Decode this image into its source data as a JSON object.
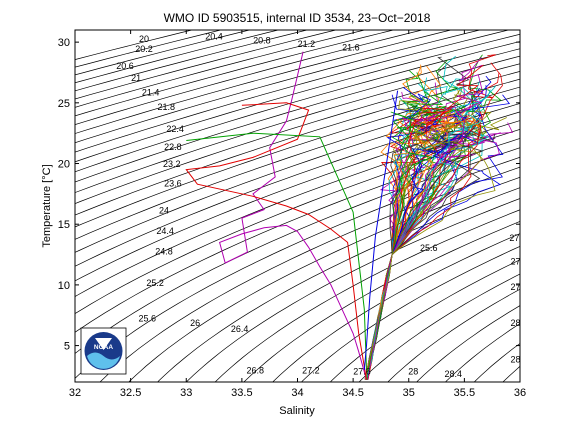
{
  "chart_data": {
    "type": "line",
    "title": "WMO ID 5903515, internal ID 3534, 23−Oct−2018",
    "xlabel": "Salinity",
    "ylabel": "Temperature [°C]",
    "xlim": [
      32,
      36
    ],
    "ylim": [
      2,
      31
    ],
    "xticks": [
      "32",
      "32.5",
      "33",
      "33.5",
      "34",
      "34.5",
      "35",
      "35.5",
      "36"
    ],
    "yticks": [
      "5",
      "10",
      "15",
      "20",
      "25",
      "30"
    ],
    "grid": false,
    "background_curves": "density (sigma-theta) isolines, black",
    "density_labels": [
      {
        "text": "20",
        "x": 32.62,
        "y": 30.0
      },
      {
        "text": "20.4",
        "x": 33.25,
        "y": 30.2
      },
      {
        "text": "20.8",
        "x": 33.68,
        "y": 29.9
      },
      {
        "text": "21.2",
        "x": 34.08,
        "y": 29.6
      },
      {
        "text": "21.6",
        "x": 34.48,
        "y": 29.3
      },
      {
        "text": "20.2",
        "x": 32.62,
        "y": 29.2
      },
      {
        "text": "20.6",
        "x": 32.45,
        "y": 27.8
      },
      {
        "text": "21",
        "x": 32.55,
        "y": 26.8
      },
      {
        "text": "21.4",
        "x": 32.68,
        "y": 25.6
      },
      {
        "text": "21.8",
        "x": 32.82,
        "y": 24.4
      },
      {
        "text": "22.4",
        "x": 32.9,
        "y": 22.6
      },
      {
        "text": "22.8",
        "x": 32.88,
        "y": 21.1
      },
      {
        "text": "23.2",
        "x": 32.87,
        "y": 19.7
      },
      {
        "text": "23.6",
        "x": 32.88,
        "y": 18.1
      },
      {
        "text": "24",
        "x": 32.8,
        "y": 15.9
      },
      {
        "text": "24.4",
        "x": 32.81,
        "y": 14.2
      },
      {
        "text": "24.8",
        "x": 32.8,
        "y": 12.5
      },
      {
        "text": "25.2",
        "x": 32.72,
        "y": 9.9
      },
      {
        "text": "25.6",
        "x": 32.65,
        "y": 7.0
      },
      {
        "text": "26",
        "x": 33.08,
        "y": 6.6
      },
      {
        "text": "26.4",
        "x": 33.48,
        "y": 6.1
      },
      {
        "text": "26.8",
        "x": 33.62,
        "y": 2.7
      },
      {
        "text": "27.2",
        "x": 34.12,
        "y": 2.7
      },
      {
        "text": "27.6",
        "x": 34.58,
        "y": 2.6
      },
      {
        "text": "28",
        "x": 35.04,
        "y": 2.6
      },
      {
        "text": "28.4",
        "x": 35.4,
        "y": 2.4
      },
      {
        "text": "25.6",
        "x": 35.18,
        "y": 12.8
      },
      {
        "text": "27",
        "x": 35.95,
        "y": 13.6
      },
      {
        "text": "27",
        "x": 35.96,
        "y": 11.7
      },
      {
        "text": "27",
        "x": 35.96,
        "y": 9.6
      },
      {
        "text": "28",
        "x": 35.96,
        "y": 6.6
      },
      {
        "text": "28",
        "x": 35.96,
        "y": 3.6
      }
    ],
    "series": [
      {
        "color": "#b000b0",
        "x": [
          34.05,
          33.95,
          33.9,
          33.75,
          33.8,
          33.6,
          33.7,
          33.5,
          33.55,
          33.35,
          33.3,
          33.5,
          33.7,
          33.9,
          34.0,
          34.1,
          34.2,
          34.3,
          34.4,
          34.5,
          34.55,
          34.62
        ],
        "y": [
          29.2,
          25.3,
          23.5,
          21.3,
          18.9,
          17.5,
          16.2,
          15.5,
          12.7,
          11.8,
          13.5,
          14.2,
          14.7,
          14.9,
          14.4,
          13.1,
          11.5,
          10.0,
          8.0,
          6.0,
          4.5,
          2.2
        ]
      },
      {
        "color": "#e00000",
        "x": [
          33.5,
          33.9,
          34.1,
          34.0,
          33.6,
          33.3,
          33.0,
          33.1,
          33.6,
          33.9,
          34.1,
          34.3,
          34.45,
          34.5,
          34.55,
          34.62
        ],
        "y": [
          24.8,
          25.0,
          24.4,
          22.0,
          20.5,
          19.8,
          19.5,
          18.3,
          17.3,
          16.5,
          15.8,
          14.6,
          13.5,
          10.0,
          6.0,
          2.2
        ]
      },
      {
        "color": "#00a000",
        "x": [
          33.0,
          33.6,
          34.2,
          34.5,
          34.6,
          34.62
        ],
        "y": [
          21.9,
          22.5,
          22.2,
          16.0,
          8.0,
          3.0
        ]
      },
      {
        "color": "#0000e0",
        "x": [
          34.9,
          34.8,
          34.7,
          34.65,
          34.62,
          34.6
        ],
        "y": [
          26.0,
          20.0,
          14.0,
          9.0,
          5.0,
          3.0
        ]
      }
    ],
    "ts_cloud": {
      "description": "many overlapping multicolored profiles converging to one deep water mass",
      "colors": [
        "#0000e0",
        "#e00000",
        "#00a000",
        "#00c0c0",
        "#b000b0",
        "#909000",
        "#303030",
        "#ff8000"
      ],
      "surface_region": {
        "s_min": 34.7,
        "s_max": 35.9,
        "t_min": 15,
        "t_max": 29.3
      },
      "thermocline_point": {
        "s": 34.85,
        "t": 12.5
      },
      "deep_point": {
        "s": 34.62,
        "t": 2.2
      }
    }
  },
  "logo": {
    "text": "NOAA"
  }
}
